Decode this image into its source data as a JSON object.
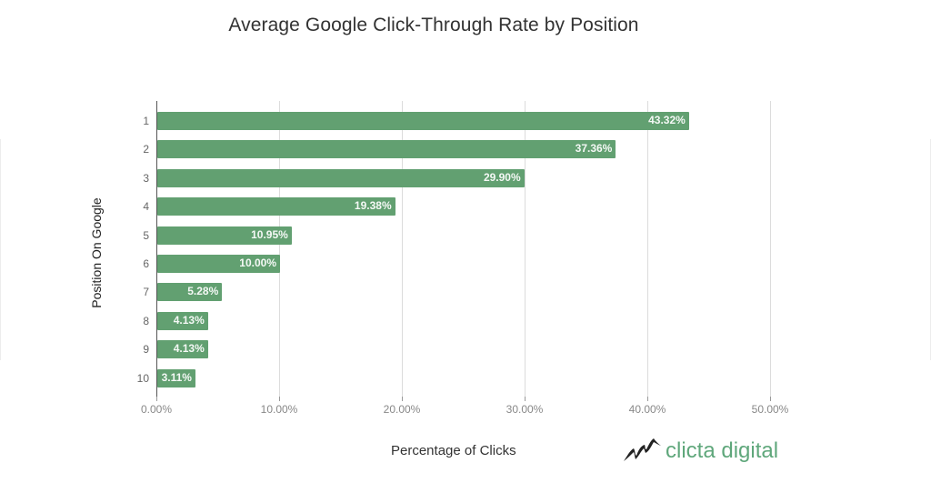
{
  "chart_data": {
    "type": "bar",
    "orientation": "horizontal",
    "title": "Average Google Click-Through Rate by Position",
    "xlabel": "Percentage of Clicks",
    "ylabel": "Position On Google",
    "categories": [
      "1",
      "2",
      "3",
      "4",
      "5",
      "6",
      "7",
      "8",
      "9",
      "10"
    ],
    "values": [
      43.32,
      37.36,
      29.9,
      19.38,
      10.95,
      10.0,
      5.28,
      4.13,
      4.13,
      3.11
    ],
    "value_labels": [
      "43.32%",
      "37.36%",
      "29.90%",
      "19.38%",
      "10.95%",
      "10.00%",
      "5.28%",
      "4.13%",
      "4.13%",
      "3.11%"
    ],
    "xlim": [
      0,
      50
    ],
    "xticks": [
      "0.00%",
      "10.00%",
      "20.00%",
      "30.00%",
      "40.00%",
      "50.00%"
    ],
    "grid": true,
    "legend": null,
    "bar_color": "#62a071"
  },
  "brand": {
    "name": "clicta digital",
    "color": "#5fa77b",
    "icon": "mountain-logo-icon"
  }
}
